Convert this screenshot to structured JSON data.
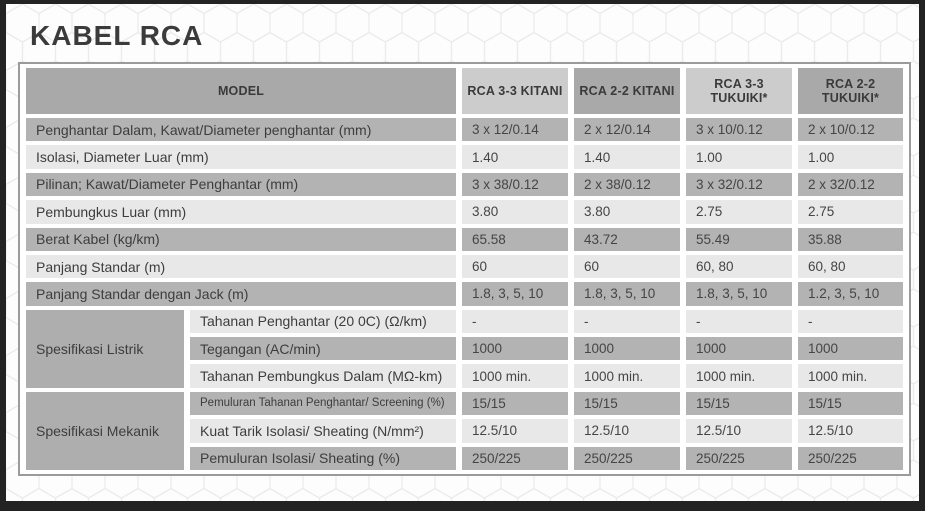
{
  "page": {
    "title": "KABEL RCA"
  },
  "colors": {
    "frame": "#232323",
    "header_dark": "#a9a9a9",
    "header_light": "#cccccc",
    "row_dark": "#b3b3b3",
    "row_light": "#e8e8e8",
    "group_cell": "#aeaeae",
    "panel_border": "#9b9b9b",
    "text": "#3d3d3d"
  },
  "table": {
    "header": {
      "model_label": "MODEL",
      "columns": [
        {
          "label": "RCA 3-3 KITANI",
          "shade": "light"
        },
        {
          "label": "RCA 2-2 KITANI",
          "shade": "dark"
        },
        {
          "label": "RCA 3-3 TUKUIKI*",
          "shade": "light"
        },
        {
          "label": "RCA 2-2 TUKUIKI*",
          "shade": "dark"
        }
      ]
    },
    "simple_rows": [
      {
        "label": "Penghantar Dalam, Kawat/Diameter penghantar (mm)",
        "values": [
          "3 x 12/0.14",
          "2 x 12/0.14",
          "3 x 10/0.12",
          "2 x 10/0.12"
        ]
      },
      {
        "label": "Isolasi, Diameter Luar (mm)",
        "values": [
          "1.40",
          "1.40",
          "1.00",
          "1.00"
        ]
      },
      {
        "label": "Pilinan; Kawat/Diameter Penghantar (mm)",
        "values": [
          "3 x 38/0.12",
          "2 x 38/0.12",
          "3 x 32/0.12",
          "2 x 32/0.12"
        ]
      },
      {
        "label": "Pembungkus Luar (mm)",
        "values": [
          "3.80",
          "3.80",
          "2.75",
          "2.75"
        ]
      },
      {
        "label": "Berat Kabel (kg/km)",
        "values": [
          "65.58",
          "43.72",
          "55.49",
          "35.88"
        ]
      },
      {
        "label": "Panjang Standar (m)",
        "values": [
          "60",
          "60",
          "60, 80",
          "60, 80"
        ]
      },
      {
        "label": "Panjang Standar dengan Jack (m)",
        "values": [
          "1.8, 3, 5, 10",
          "1.8, 3, 5, 10",
          "1.8, 3, 5, 10",
          "1.2, 3, 5, 10"
        ]
      }
    ],
    "groups": [
      {
        "label": "Spesifikasi Listrik",
        "rows": [
          {
            "label": "Tahanan Penghantar (20 0C) (Ω/km)",
            "small": false,
            "values": [
              "-",
              "-",
              "-",
              "-"
            ]
          },
          {
            "label": "Tegangan (AC/min)",
            "small": false,
            "values": [
              "1000",
              "1000",
              "1000",
              "1000"
            ]
          },
          {
            "label": "Tahanan Pembungkus Dalam (MΩ-km)",
            "small": false,
            "values": [
              "1000 min.",
              "1000 min.",
              "1000 min.",
              "1000 min."
            ]
          }
        ]
      },
      {
        "label": "Spesifikasi Mekanik",
        "rows": [
          {
            "label": "Pemuluran Tahanan Penghantar/ Screening (%)",
            "small": true,
            "values": [
              "15/15",
              "15/15",
              "15/15",
              "15/15"
            ]
          },
          {
            "label": "Kuat Tarik Isolasi/ Sheating (N/mm²)",
            "small": false,
            "values": [
              "12.5/10",
              "12.5/10",
              "12.5/10",
              "12.5/10"
            ]
          },
          {
            "label": "Pemuluran Isolasi/ Sheating (%)",
            "small": false,
            "values": [
              "250/225",
              "250/225",
              "250/225",
              "250/225"
            ]
          }
        ]
      }
    ]
  }
}
